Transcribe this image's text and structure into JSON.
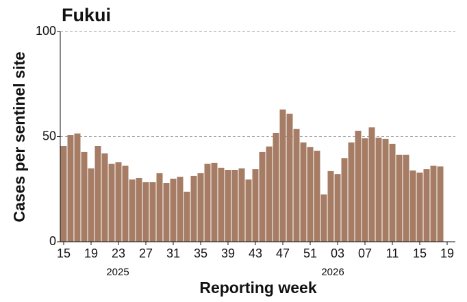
{
  "chart_data": {
    "type": "bar",
    "title": "Fukui",
    "x_label": "Reporting week",
    "y_label": "Cases per sentinel site",
    "annotations": [
      "2025",
      "2026"
    ],
    "categories": [
      "15",
      null,
      null,
      null,
      "19",
      null,
      null,
      null,
      "23",
      null,
      null,
      null,
      "27",
      null,
      null,
      null,
      "31",
      null,
      null,
      null,
      "35",
      null,
      null,
      null,
      "39",
      null,
      null,
      null,
      "43",
      null,
      null,
      null,
      "47",
      null,
      null,
      null,
      "51",
      null,
      null,
      null,
      "03",
      null,
      null,
      null,
      "07",
      null,
      null,
      null,
      "11",
      null,
      null,
      null,
      "15",
      null,
      null,
      null,
      "19"
    ],
    "values": [
      45.6,
      50.8,
      51.5,
      42.7,
      34.9,
      45.6,
      42,
      37.1,
      37.8,
      36.2,
      29.6,
      30.3,
      28.3,
      28.3,
      32.6,
      28,
      30,
      30.9,
      23.8,
      31.3,
      32.6,
      37.1,
      37.5,
      35.2,
      34.2,
      34.2,
      34.9,
      29.6,
      34.5,
      42.7,
      45.3,
      51.8,
      62.9,
      60.9,
      53.7,
      47.2,
      45,
      43.3,
      22.5,
      33.6,
      32.2,
      39.7,
      47.2,
      52.8,
      49.2,
      54.4,
      49.5,
      48.9,
      46.6,
      41.4,
      41.4,
      33.9,
      32.9,
      34.5,
      36.2,
      35.8,
      null
    ],
    "color": "#a67c65",
    "ylim": [
      0,
      100
    ],
    "yticks": [
      0,
      50,
      100
    ],
    "grid": true
  }
}
